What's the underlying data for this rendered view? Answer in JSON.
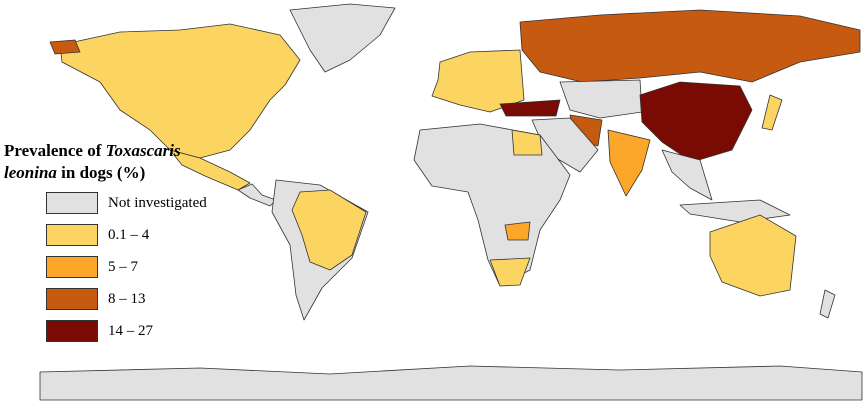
{
  "legend": {
    "title": {
      "line1_plain": "Prevalence of",
      "line1_italic": "Toxascaris",
      "line2_italic": "leonina",
      "line2_plain": "in dogs (%)"
    },
    "items": [
      {
        "label": "Not investigated",
        "color": "#e1e1e1"
      },
      {
        "label": "0.1 – 4",
        "color": "#fcd462"
      },
      {
        "label": "5 – 7",
        "color": "#fca72a"
      },
      {
        "label": "8 – 13",
        "color": "#c65a10"
      },
      {
        "label": "14 – 27",
        "color": "#7a0a04"
      }
    ]
  }
}
